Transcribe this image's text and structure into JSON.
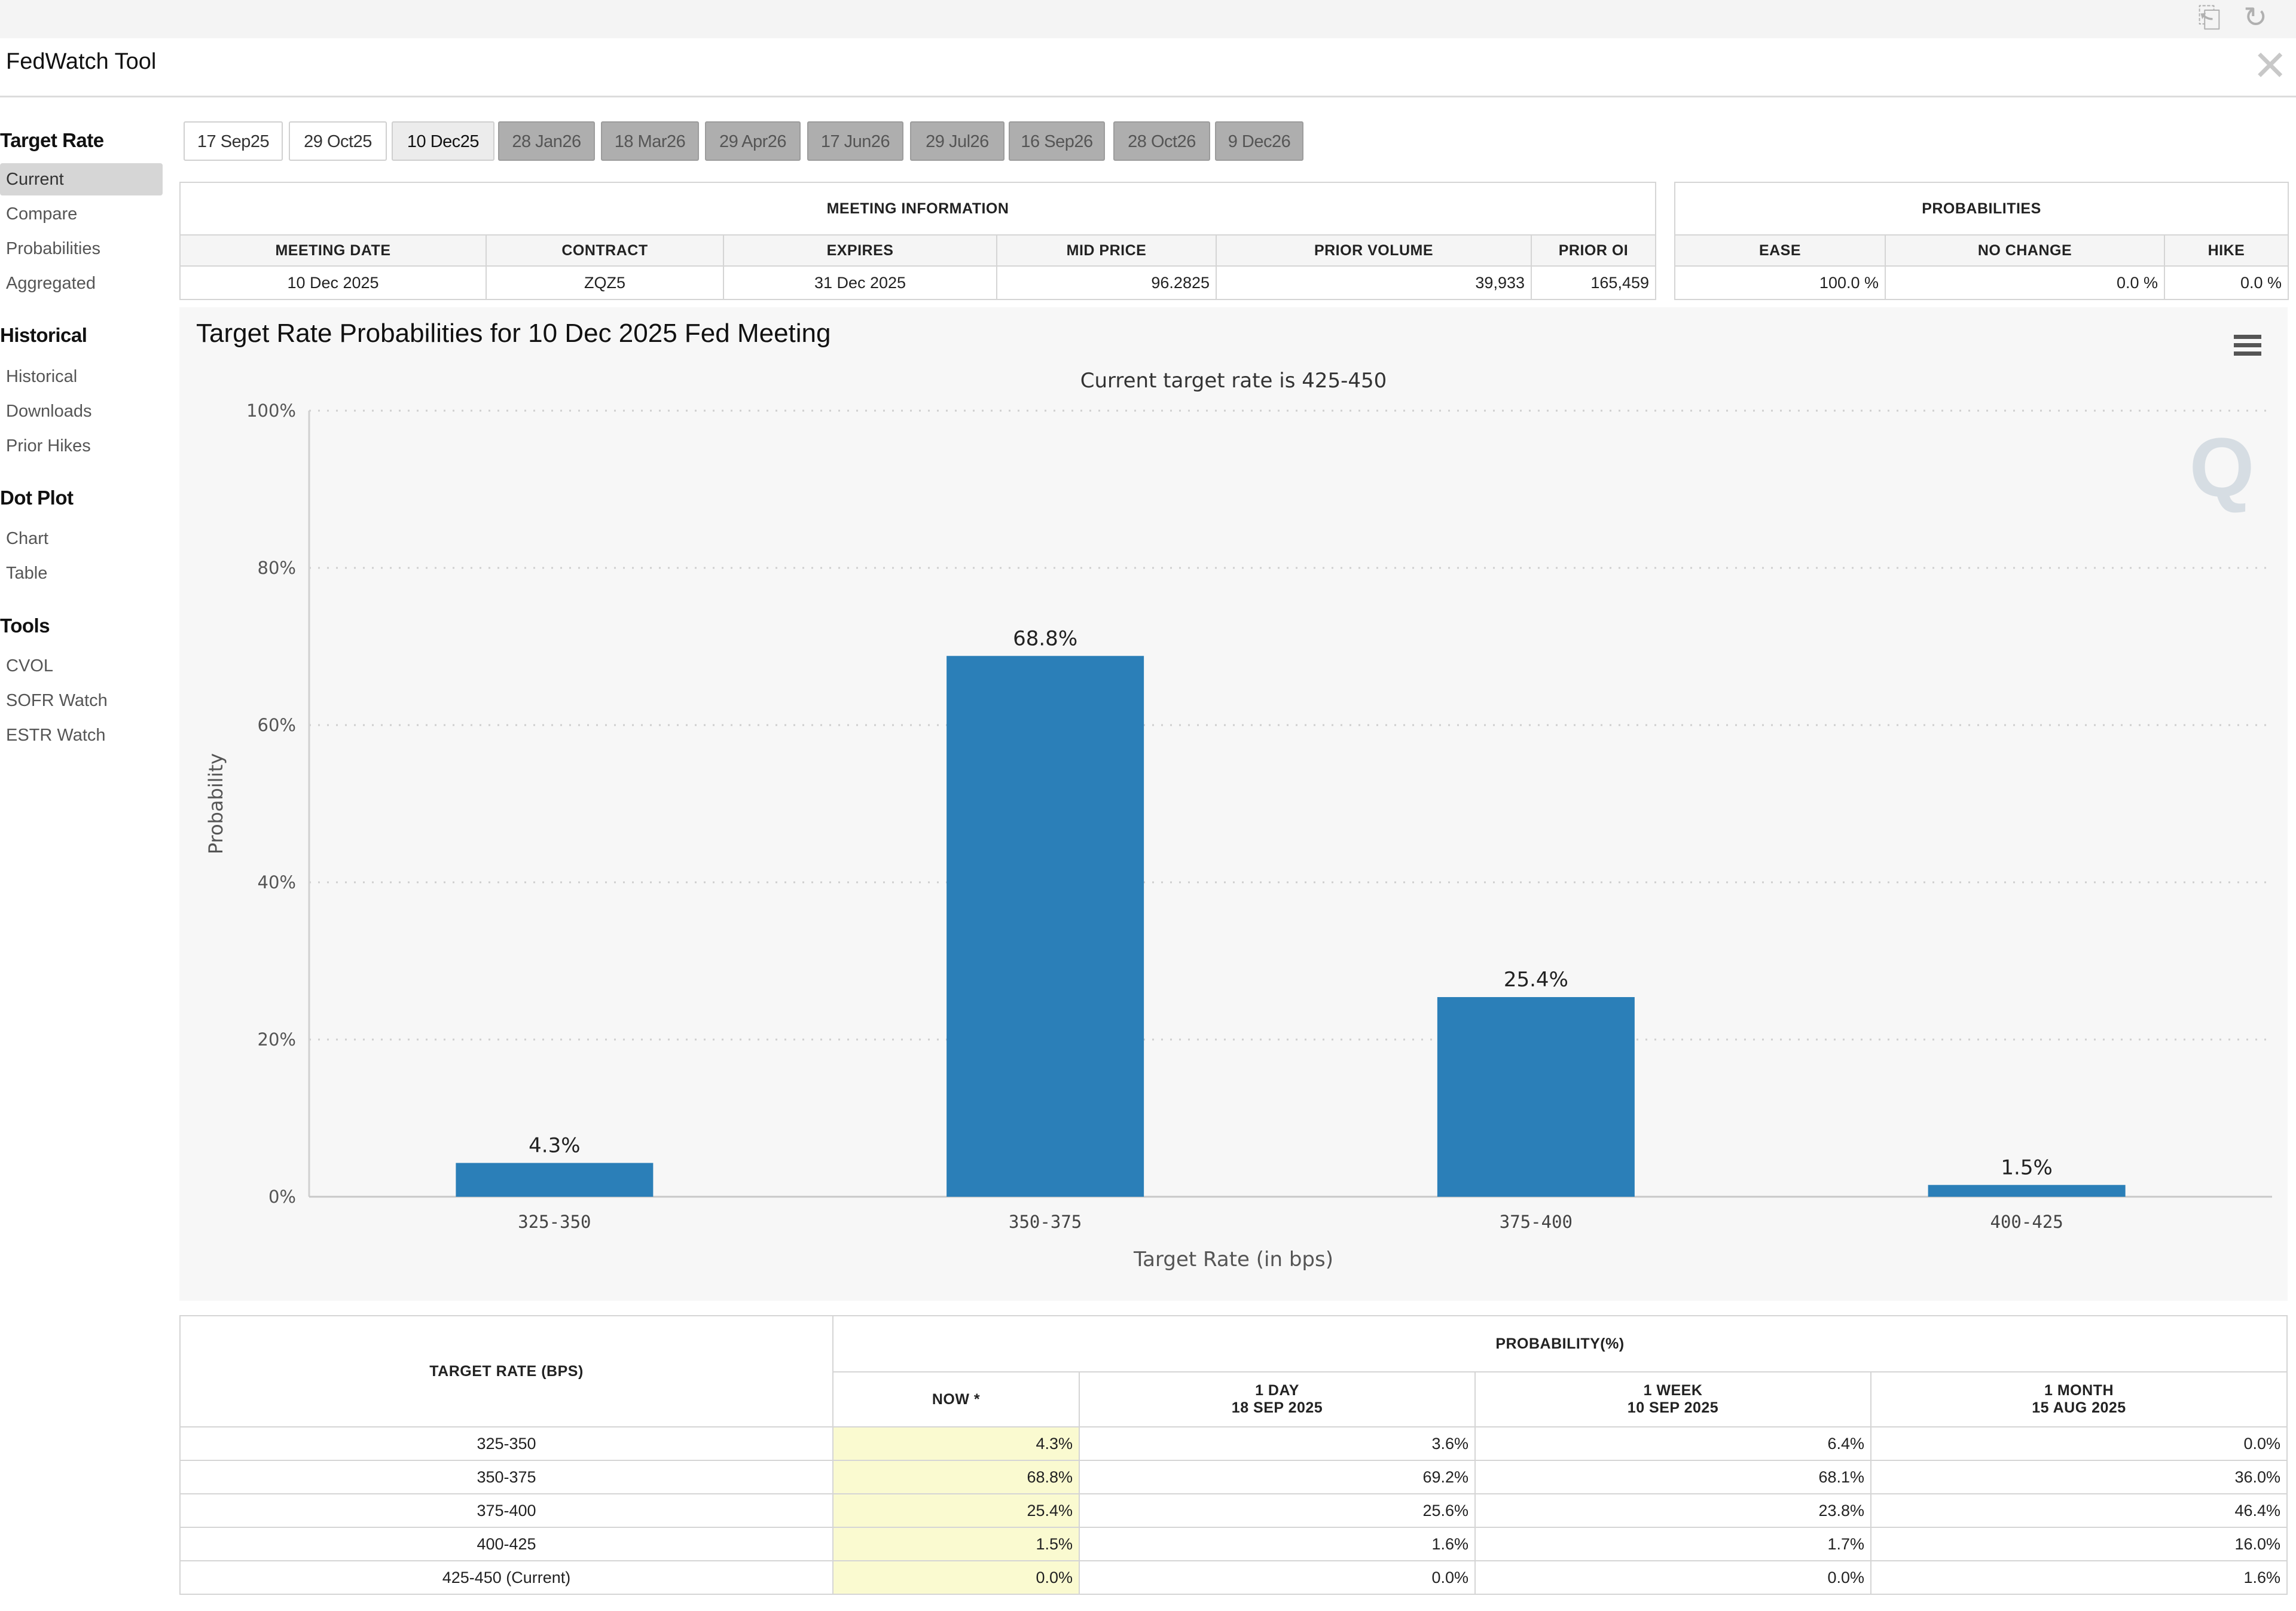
{
  "window": {
    "title": "FedWatch Tool",
    "close_icon": "close-icon",
    "top_icons": [
      "export-icon",
      "refresh-icon"
    ]
  },
  "sidebar": {
    "sections": [
      {
        "heading": "Target Rate",
        "items": [
          "Current",
          "Compare",
          "Probabilities",
          "Aggregated"
        ],
        "active": "Current"
      },
      {
        "heading": "Historical",
        "items": [
          "Historical",
          "Downloads",
          "Prior Hikes"
        ]
      },
      {
        "heading": "Dot Plot",
        "items": [
          "Chart",
          "Table"
        ]
      },
      {
        "heading": "Tools",
        "items": [
          "CVOL",
          "SOFR Watch",
          "ESTR Watch"
        ]
      }
    ]
  },
  "meeting_tabs": [
    {
      "label": "17 Sep25",
      "state": "available"
    },
    {
      "label": "29 Oct25",
      "state": "available"
    },
    {
      "label": "10 Dec25",
      "state": "selected"
    },
    {
      "label": "28 Jan26",
      "state": "future"
    },
    {
      "label": "18 Mar26",
      "state": "future"
    },
    {
      "label": "29 Apr26",
      "state": "future"
    },
    {
      "label": "17 Jun26",
      "state": "future"
    },
    {
      "label": "29 Jul26",
      "state": "future"
    },
    {
      "label": "16 Sep26",
      "state": "future"
    },
    {
      "label": "28 Oct26",
      "state": "future"
    },
    {
      "label": "9 Dec26",
      "state": "future"
    }
  ],
  "meeting_info": {
    "title": "MEETING INFORMATION",
    "headers": [
      "MEETING DATE",
      "CONTRACT",
      "EXPIRES",
      "MID PRICE",
      "PRIOR VOLUME",
      "PRIOR OI"
    ],
    "values": [
      "10 Dec 2025",
      "ZQZ5",
      "31 Dec 2025",
      "96.2825",
      "39,933",
      "165,459"
    ]
  },
  "probabilities": {
    "title": "PROBABILITIES",
    "headers": [
      "EASE",
      "NO CHANGE",
      "HIKE"
    ],
    "values": [
      "100.0 %",
      "0.0 %",
      "0.0 %"
    ]
  },
  "chart_menu_icon": "hamburger-menu-icon",
  "watermark_icon": "q-logo-icon",
  "chart_data": {
    "type": "bar",
    "title": "Target Rate Probabilities for 10 Dec 2025 Fed Meeting",
    "subtitle": "Current target rate is 425-450",
    "xlabel": "Target Rate (in bps)",
    "ylabel": "Probability",
    "categories": [
      "325-350",
      "350-375",
      "375-400",
      "400-425"
    ],
    "values": [
      4.3,
      68.8,
      25.4,
      1.5
    ],
    "data_labels": [
      "4.3%",
      "68.8%",
      "25.4%",
      "1.5%"
    ],
    "ylim": [
      0,
      100
    ],
    "yticks": [
      0,
      20,
      40,
      60,
      80,
      100
    ],
    "ytick_labels": [
      "0%",
      "20%",
      "40%",
      "60%",
      "80%",
      "100%"
    ],
    "grid": "horizontal dotted",
    "bar_color": "#2b7fb8"
  },
  "history_table": {
    "col1_header": "TARGET RATE (BPS)",
    "group_header": "PROBABILITY(%)",
    "col_headers": [
      {
        "line1": "NOW *",
        "line2": ""
      },
      {
        "line1": "1 DAY",
        "line2": "18 SEP 2025"
      },
      {
        "line1": "1 WEEK",
        "line2": "10 SEP 2025"
      },
      {
        "line1": "1 MONTH",
        "line2": "15 AUG 2025"
      }
    ],
    "rows": [
      {
        "rate": "325-350",
        "now": "4.3%",
        "day": "3.6%",
        "week": "6.4%",
        "month": "0.0%"
      },
      {
        "rate": "350-375",
        "now": "68.8%",
        "day": "69.2%",
        "week": "68.1%",
        "month": "36.0%"
      },
      {
        "rate": "375-400",
        "now": "25.4%",
        "day": "25.6%",
        "week": "23.8%",
        "month": "46.4%"
      },
      {
        "rate": "400-425",
        "now": "1.5%",
        "day": "1.6%",
        "week": "1.7%",
        "month": "16.0%"
      },
      {
        "rate": "425-450 (Current)",
        "now": "0.0%",
        "day": "0.0%",
        "week": "0.0%",
        "month": "1.6%"
      }
    ]
  }
}
